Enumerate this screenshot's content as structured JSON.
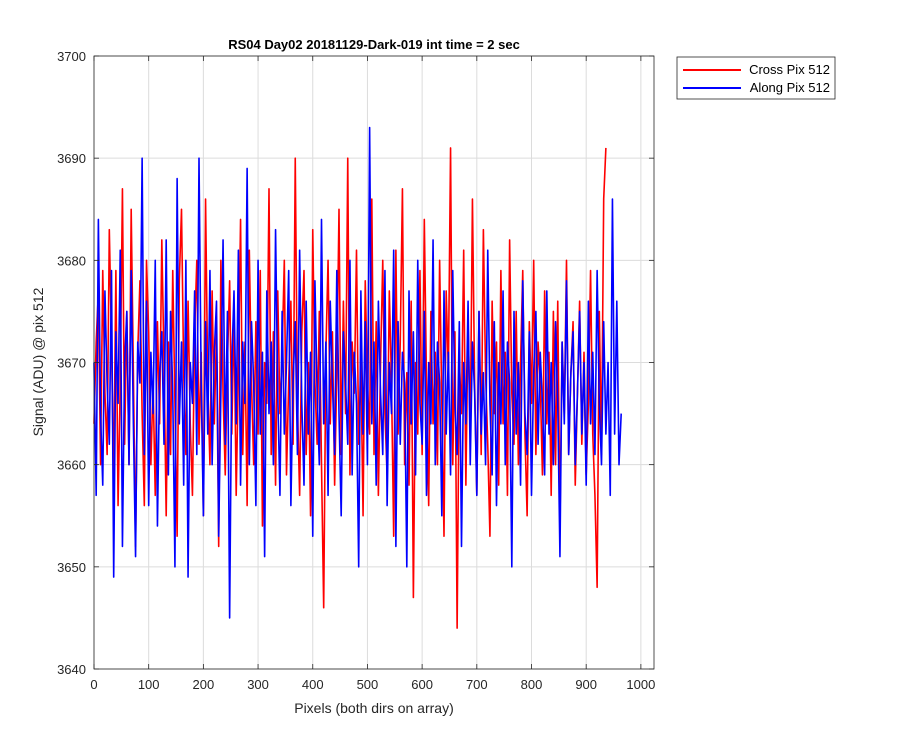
{
  "chart_data": {
    "type": "line",
    "title": "RS04 Day02 20181129-Dark-019 int time = 2 sec",
    "xlabel": "Pixels (both dirs on array)",
    "ylabel": "Signal (ADU) @ pix 512",
    "xlim": [
      0,
      1024
    ],
    "ylim": [
      3640,
      3700
    ],
    "xticks": [
      "0",
      "100",
      "200",
      "300",
      "400",
      "500",
      "600",
      "700",
      "800",
      "900",
      "1000"
    ],
    "yticks": [
      "3640",
      "3650",
      "3660",
      "3670",
      "3680",
      "3690",
      "3700"
    ],
    "grid": true,
    "legend_position": "outside top-right",
    "series": [
      {
        "name": "Cross Pix 512",
        "color": "#ff0000",
        "x_start": 0,
        "x_step": 4,
        "values": [
          3664,
          3672,
          3677,
          3660,
          3679,
          3667,
          3661,
          3683,
          3672,
          3658,
          3679,
          3656,
          3668,
          3687,
          3662,
          3675,
          3660,
          3685,
          3669,
          3652,
          3671,
          3678,
          3665,
          3656,
          3680,
          3673,
          3660,
          3668,
          3657,
          3674,
          3664,
          3682,
          3670,
          3655,
          3672,
          3661,
          3679,
          3666,
          3653,
          3678,
          3685,
          3669,
          3661,
          3676,
          3664,
          3657,
          3673,
          3680,
          3662,
          3671,
          3655,
          3686,
          3668,
          3660,
          3677,
          3664,
          3673,
          3652,
          3680,
          3667,
          3659,
          3670,
          3678,
          3663,
          3675,
          3657,
          3669,
          3684,
          3661,
          3672,
          3656,
          3681,
          3668,
          3660,
          3674,
          3663,
          3679,
          3654,
          3670,
          3666,
          3687,
          3661,
          3673,
          3658,
          3677,
          3665,
          3671,
          3680,
          3659,
          3668,
          3676,
          3662,
          3690,
          3666,
          3657,
          3673,
          3679,
          3661,
          3670,
          3655,
          3683,
          3668,
          3662,
          3675,
          3660,
          3646,
          3671,
          3680,
          3664,
          3673,
          3658,
          3669,
          3685,
          3661,
          3676,
          3665,
          3690,
          3659,
          3672,
          3667,
          3681,
          3662,
          3670,
          3655,
          3678,
          3668,
          3663,
          3686,
          3661,
          3674,
          3657,
          3670,
          3680,
          3665,
          3659,
          3677,
          3668,
          3653,
          3681,
          3663,
          3672,
          3687,
          3660,
          3669,
          3658,
          3676,
          3647,
          3670,
          3663,
          3679,
          3661,
          3684,
          3668,
          3656,
          3675,
          3664,
          3671,
          3660,
          3680,
          3666,
          3653,
          3677,
          3669,
          3691,
          3660,
          3673,
          3644,
          3670,
          3665,
          3681,
          3658,
          3674,
          3663,
          3686,
          3668,
          3657,
          3675,
          3661,
          3683,
          3669,
          3662,
          3653,
          3676,
          3665,
          3672,
          3658,
          3679,
          3664,
          3671,
          3657,
          3682,
          3667,
          3662,
          3675,
          3660,
          3670,
          3679,
          3663,
          3655,
          3674,
          3666,
          3680,
          3661,
          3672,
          3668,
          3659,
          3677,
          3664,
          3671,
          3657,
          3675,
          3660,
          3676,
          3654,
          3672,
          3665,
          3680,
          3661,
          3669,
          3674,
          3658,
          3667,
          3676,
          3662,
          3671,
          3659,
          3666,
          3679,
          3663,
          3657,
          3648,
          3675,
          3661,
          3686,
          3691
        ]
      },
      {
        "name": "Along Pix 512",
        "color": "#0000ff",
        "x_start": 0,
        "x_step": 4,
        "values": [
          3670,
          3657,
          3684,
          3665,
          3658,
          3677,
          3668,
          3662,
          3679,
          3649,
          3673,
          3666,
          3681,
          3652,
          3670,
          3675,
          3660,
          3679,
          3664,
          3651,
          3672,
          3668,
          3690,
          3661,
          3676,
          3656,
          3671,
          3665,
          3680,
          3654,
          3669,
          3673,
          3662,
          3682,
          3659,
          3675,
          3667,
          3650,
          3688,
          3664,
          3672,
          3658,
          3680,
          3649,
          3670,
          3666,
          3677,
          3661,
          3690,
          3668,
          3655,
          3674,
          3663,
          3679,
          3660,
          3671,
          3676,
          3653,
          3667,
          3682,
          3662,
          3675,
          3645,
          3670,
          3677,
          3664,
          3681,
          3658,
          3672,
          3666,
          3689,
          3660,
          3674,
          3668,
          3656,
          3680,
          3663,
          3671,
          3651,
          3677,
          3665,
          3672,
          3660,
          3683,
          3667,
          3657,
          3675,
          3663,
          3670,
          3679,
          3656,
          3668,
          3674,
          3661,
          3681,
          3666,
          3658,
          3676,
          3663,
          3671,
          3653,
          3678,
          3667,
          3660,
          3684,
          3664,
          3672,
          3657,
          3676,
          3668,
          3661,
          3679,
          3665,
          3655,
          3673,
          3668,
          3662,
          3680,
          3659,
          3671,
          3666,
          3650,
          3677,
          3663,
          3674,
          3660,
          3693,
          3664,
          3672,
          3658,
          3676,
          3667,
          3661,
          3679,
          3656,
          3670,
          3665,
          3681,
          3652,
          3674,
          3662,
          3671,
          3668,
          3650,
          3677,
          3664,
          3673,
          3659,
          3680,
          3666,
          3662,
          3675,
          3657,
          3670,
          3664,
          3682,
          3660,
          3672,
          3668,
          3655,
          3677,
          3663,
          3671,
          3659,
          3679,
          3666,
          3661,
          3674,
          3652,
          3670,
          3664,
          3676,
          3660,
          3672,
          3667,
          3657,
          3675,
          3663,
          3669,
          3660,
          3681,
          3666,
          3659,
          3674,
          3656,
          3670,
          3664,
          3677,
          3660,
          3672,
          3668,
          3650,
          3675,
          3663,
          3670,
          3658,
          3678,
          3665,
          3661,
          3673,
          3657,
          3669,
          3675,
          3662,
          3671,
          3666,
          3659,
          3677,
          3663,
          3670,
          3660,
          3674,
          3666,
          3651,
          3672,
          3664,
          3678,
          3661,
          3669,
          3673,
          3660,
          3667,
          3675,
          3663,
          3670,
          3658,
          3676,
          3664,
          3671,
          3661,
          3679,
          3666,
          3660,
          3674,
          3663,
          3670,
          3657,
          3686,
          3663,
          3676,
          3660,
          3665
        ]
      }
    ]
  }
}
